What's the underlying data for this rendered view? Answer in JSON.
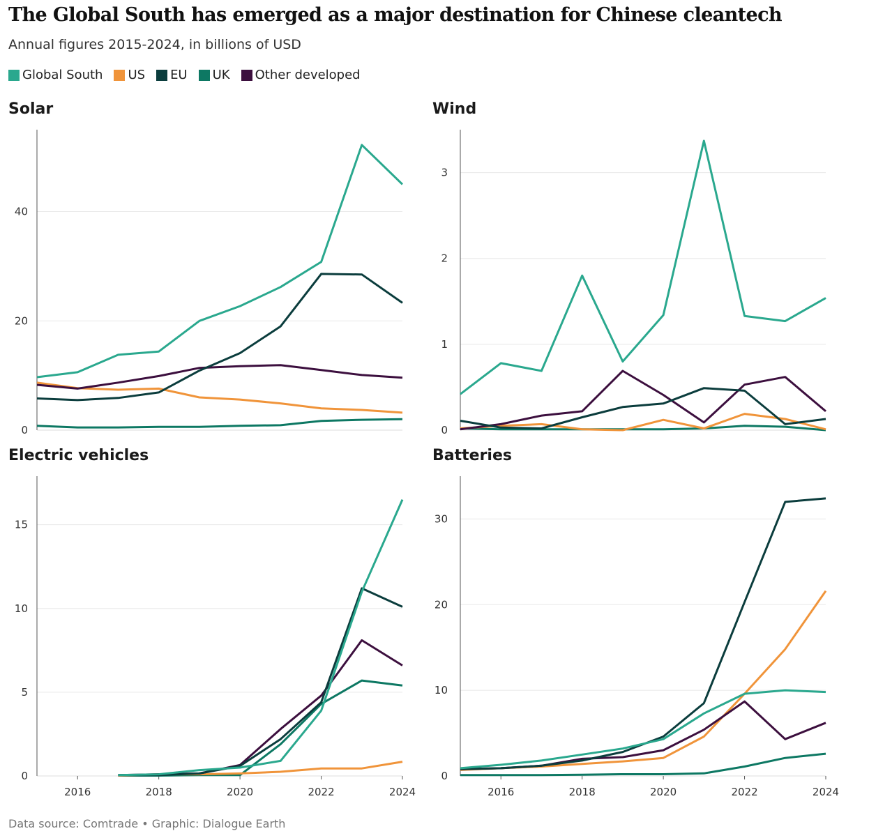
{
  "title": "The Global South has emerged as a major destination for Chinese cleantech",
  "subtitle": "Annual figures 2015-2024, in billions of USD",
  "source": "Data source: Comtrade • Graphic: Dialogue Earth",
  "legend": [
    {
      "name": "Global South",
      "color": "#2aa88e"
    },
    {
      "name": "US",
      "color": "#f0943a"
    },
    {
      "name": "EU",
      "color": "#0b3d3d"
    },
    {
      "name": "UK",
      "color": "#0d7863"
    },
    {
      "name": "Other developed",
      "color": "#3c0f3e"
    }
  ],
  "chart_data": [
    {
      "type": "line",
      "title": "Solar",
      "xlabel": "",
      "ylabel": "",
      "x": [
        2015,
        2016,
        2017,
        2018,
        2019,
        2020,
        2021,
        2022,
        2023,
        2024
      ],
      "xlim": [
        2015,
        2024
      ],
      "ylim": [
        0,
        55
      ],
      "yticks": [
        0,
        20,
        40
      ],
      "xticks": [],
      "grid": true,
      "series": [
        {
          "name": "Global South",
          "values": [
            9.7,
            10.6,
            13.8,
            14.4,
            20,
            22.7,
            26.2,
            30.8,
            52.2,
            45
          ]
        },
        {
          "name": "US",
          "values": [
            8.7,
            7.7,
            7.4,
            7.6,
            6,
            5.6,
            4.9,
            4,
            3.7,
            3.2
          ]
        },
        {
          "name": "EU",
          "values": [
            5.8,
            5.5,
            5.9,
            6.9,
            10.9,
            14.1,
            19,
            28.6,
            28.5,
            23.3
          ]
        },
        {
          "name": "UK",
          "values": [
            0.8,
            0.5,
            0.5,
            0.6,
            0.6,
            0.8,
            0.9,
            1.7,
            1.9,
            2
          ]
        },
        {
          "name": "Other developed",
          "values": [
            8.3,
            7.6,
            8.7,
            9.9,
            11.4,
            11.7,
            11.9,
            11,
            10.1,
            9.6
          ]
        }
      ]
    },
    {
      "type": "line",
      "title": "Wind",
      "xlabel": "",
      "ylabel": "",
      "x": [
        2015,
        2016,
        2017,
        2018,
        2019,
        2020,
        2021,
        2022,
        2023,
        2024
      ],
      "xlim": [
        2015,
        2024
      ],
      "ylim": [
        0,
        3.5
      ],
      "yticks": [
        0,
        1,
        2,
        3
      ],
      "xticks": [],
      "grid": true,
      "series": [
        {
          "name": "Global South",
          "values": [
            0.42,
            0.78,
            0.69,
            1.8,
            0.8,
            1.34,
            3.37,
            1.33,
            1.27,
            1.54
          ]
        },
        {
          "name": "US",
          "values": [
            0.02,
            0.05,
            0.07,
            0.01,
            0,
            0.12,
            0.02,
            0.19,
            0.13,
            0.01
          ]
        },
        {
          "name": "EU",
          "values": [
            0.11,
            0.03,
            0.02,
            0.15,
            0.27,
            0.31,
            0.49,
            0.46,
            0.07,
            0.13
          ]
        },
        {
          "name": "UK",
          "values": [
            0.02,
            0.01,
            0.01,
            0.01,
            0.01,
            0.01,
            0.02,
            0.05,
            0.04,
            0
          ]
        },
        {
          "name": "Other developed",
          "values": [
            0.01,
            0.07,
            0.17,
            0.22,
            0.69,
            0.41,
            0.09,
            0.53,
            0.62,
            0.22
          ]
        }
      ]
    },
    {
      "type": "line",
      "title": "Electric vehicles",
      "xlabel": "",
      "ylabel": "",
      "x": [
        2017,
        2018,
        2019,
        2020,
        2021,
        2022,
        2023,
        2024
      ],
      "xlim": [
        2015,
        2024
      ],
      "ylim": [
        0,
        17.9
      ],
      "yticks": [
        0,
        5,
        10,
        15
      ],
      "xticks": [
        2016,
        2018,
        2020,
        2022,
        2024
      ],
      "grid": true,
      "series": [
        {
          "name": "Global South",
          "values": [
            0.05,
            0.1,
            0.35,
            0.5,
            0.9,
            3.9,
            11,
            16.5
          ]
        },
        {
          "name": "US",
          "values": [
            0.02,
            0.1,
            0.1,
            0.15,
            0.25,
            0.45,
            0.45,
            0.85
          ]
        },
        {
          "name": "EU",
          "values": [
            0.05,
            0.05,
            0.15,
            0.6,
            2.2,
            4.4,
            11.2,
            10.1
          ]
        },
        {
          "name": "UK",
          "values": [
            0.02,
            0.02,
            0.05,
            0.05,
            1.9,
            4.3,
            5.7,
            5.4
          ]
        },
        {
          "name": "Other developed",
          "values": [
            0.05,
            0.1,
            0.15,
            0.65,
            2.8,
            4.8,
            8.1,
            6.6
          ]
        }
      ]
    },
    {
      "type": "line",
      "title": "Batteries",
      "xlabel": "",
      "ylabel": "",
      "x": [
        2015,
        2016,
        2017,
        2018,
        2019,
        2020,
        2021,
        2022,
        2023,
        2024
      ],
      "xlim": [
        2015,
        2024
      ],
      "ylim": [
        0,
        35
      ],
      "yticks": [
        0,
        10,
        20,
        30
      ],
      "xticks": [
        2016,
        2018,
        2020,
        2022,
        2024
      ],
      "grid": true,
      "series": [
        {
          "name": "Global South",
          "values": [
            0.9,
            1.3,
            1.8,
            2.5,
            3.2,
            4.3,
            7.3,
            9.6,
            10,
            9.8
          ]
        },
        {
          "name": "US",
          "values": [
            0.7,
            0.9,
            1.1,
            1.4,
            1.7,
            2.1,
            4.6,
            9.6,
            14.8,
            21.6
          ]
        },
        {
          "name": "EU",
          "values": [
            0.8,
            0.9,
            1.2,
            1.8,
            2.8,
            4.6,
            8.5,
            20.3,
            32,
            32.4
          ]
        },
        {
          "name": "UK",
          "values": [
            0.1,
            0.1,
            0.1,
            0.15,
            0.2,
            0.2,
            0.3,
            1.1,
            2.1,
            2.6
          ]
        },
        {
          "name": "Other developed",
          "values": [
            0.8,
            0.9,
            1.2,
            2,
            2.2,
            3,
            5.4,
            8.7,
            4.3,
            6.2
          ]
        }
      ]
    }
  ]
}
